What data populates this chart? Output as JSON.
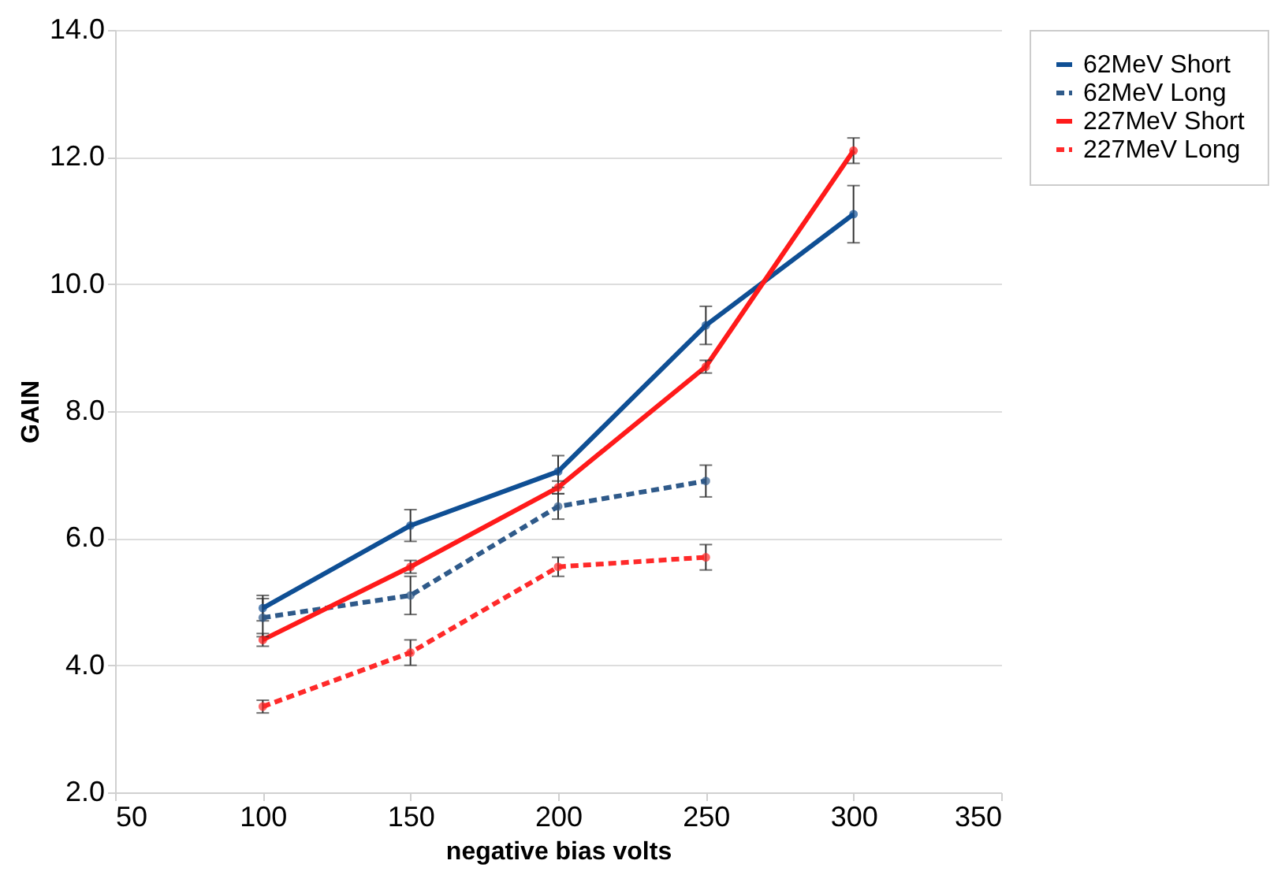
{
  "chart_data": {
    "type": "line",
    "xlabel": "negative bias volts",
    "ylabel": "GAIN",
    "xlim": [
      50,
      350
    ],
    "xticks": [
      50,
      100,
      150,
      200,
      250,
      300,
      350
    ],
    "ylim": [
      2,
      14
    ],
    "yticks": [
      {
        "value": 2,
        "label": "2.0"
      },
      {
        "value": 4,
        "label": "4.0"
      },
      {
        "value": 6,
        "label": "6.0"
      },
      {
        "value": 8,
        "label": "8.0"
      },
      {
        "value": 10,
        "label": "10.0"
      },
      {
        "value": 12,
        "label": "12.0"
      },
      {
        "value": 14,
        "label": "14.0"
      }
    ],
    "grid": "y",
    "legend": "right",
    "marker": "circle",
    "series": [
      {
        "name": "62MeV Short",
        "color": "#0f4f94",
        "line_style": "solid",
        "x": [
          100,
          150,
          200,
          250,
          300
        ],
        "values": [
          4.9,
          6.2,
          7.05,
          9.35,
          11.1
        ],
        "errors": [
          0.2,
          0.25,
          0.25,
          0.3,
          0.45
        ]
      },
      {
        "name": "62MeV Long",
        "color": "#2f5a8a",
        "line_style": "dashed",
        "x": [
          100,
          150,
          200,
          250
        ],
        "values": [
          4.75,
          5.1,
          6.5,
          6.9
        ],
        "errors": [
          0.3,
          0.3,
          0.2,
          0.25
        ]
      },
      {
        "name": "227MeV Short",
        "color": "#ff1a1a",
        "line_style": "solid",
        "x": [
          100,
          150,
          200,
          250,
          300
        ],
        "values": [
          4.4,
          5.55,
          6.8,
          8.7,
          12.1
        ],
        "errors": [
          0.1,
          0.1,
          0.1,
          0.1,
          0.2
        ]
      },
      {
        "name": "227MeV Long",
        "color": "#ff2a2a",
        "line_style": "dashed",
        "x": [
          100,
          150,
          200,
          250
        ],
        "values": [
          3.35,
          4.2,
          5.55,
          5.7
        ],
        "errors": [
          0.1,
          0.2,
          0.15,
          0.2
        ]
      }
    ]
  }
}
